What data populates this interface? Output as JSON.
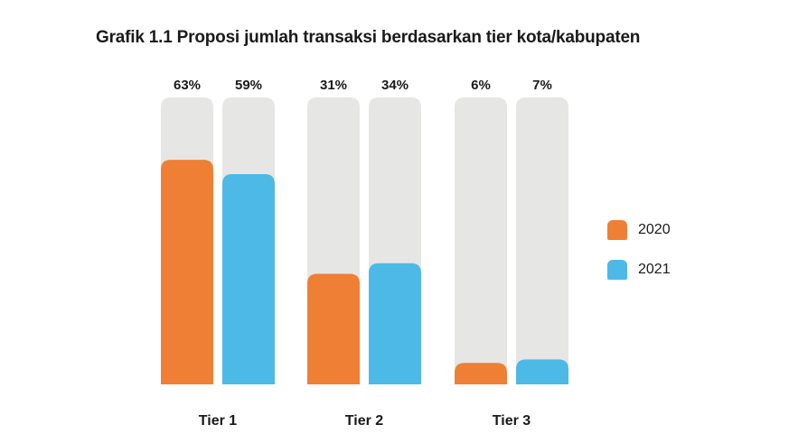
{
  "chart_data": {
    "type": "bar",
    "title": "Grafik 1.1 Proposi jumlah transaksi berdasarkan tier kota/kabupaten",
    "categories": [
      "Tier 1",
      "Tier 2",
      "Tier 3"
    ],
    "series": [
      {
        "name": "2020",
        "values": [
          63,
          31,
          6
        ],
        "labels": [
          "63%",
          "31%",
          "6%"
        ],
        "color": "#ef7f34"
      },
      {
        "name": "2021",
        "values": [
          59,
          34,
          7
        ],
        "labels": [
          "59%",
          "34%",
          "7%"
        ],
        "color": "#4db9e6"
      }
    ],
    "ylim": [
      0,
      80
    ],
    "track_color": "#e6e6e4",
    "legend_position": "right",
    "grid": false
  }
}
